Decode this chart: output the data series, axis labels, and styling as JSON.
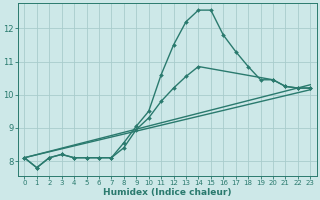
{
  "xlabel": "Humidex (Indice chaleur)",
  "bg_color": "#cde8e8",
  "grid_color": "#a8cccc",
  "line_color": "#2a7a6e",
  "xlim": [
    -0.5,
    23.5
  ],
  "ylim": [
    7.55,
    12.75
  ],
  "yticks": [
    8,
    9,
    10,
    11,
    12
  ],
  "xticks": [
    0,
    1,
    2,
    3,
    4,
    5,
    6,
    7,
    8,
    9,
    10,
    11,
    12,
    13,
    14,
    15,
    16,
    17,
    18,
    19,
    20,
    21,
    22,
    23
  ],
  "series": [
    {
      "x": [
        0,
        1,
        2,
        3,
        4,
        5,
        6,
        7,
        8,
        9,
        10,
        11,
        12,
        13,
        14,
        15,
        16,
        17,
        18,
        19,
        20,
        21,
        22,
        23
      ],
      "y": [
        8.1,
        7.8,
        8.1,
        8.2,
        8.1,
        8.1,
        8.1,
        8.1,
        8.55,
        9.05,
        9.5,
        10.6,
        11.5,
        12.2,
        12.55,
        12.55,
        11.8,
        11.3,
        10.85,
        10.45,
        10.45,
        10.25,
        10.2,
        10.2
      ],
      "markers": true,
      "lw": 1.0
    },
    {
      "x": [
        0,
        1,
        2,
        3,
        4,
        5,
        6,
        7,
        8,
        9,
        10,
        11,
        12,
        13,
        14,
        20,
        21,
        22,
        23
      ],
      "y": [
        8.1,
        7.8,
        8.1,
        8.2,
        8.1,
        8.1,
        8.1,
        8.1,
        8.4,
        8.95,
        9.3,
        9.8,
        10.2,
        10.55,
        10.85,
        10.45,
        10.25,
        10.2,
        10.2
      ],
      "markers": true,
      "lw": 1.0
    },
    {
      "x": [
        0,
        23
      ],
      "y": [
        8.1,
        10.3
      ],
      "markers": false,
      "lw": 1.0
    },
    {
      "x": [
        0,
        23
      ],
      "y": [
        8.1,
        10.15
      ],
      "markers": false,
      "lw": 1.0
    }
  ]
}
